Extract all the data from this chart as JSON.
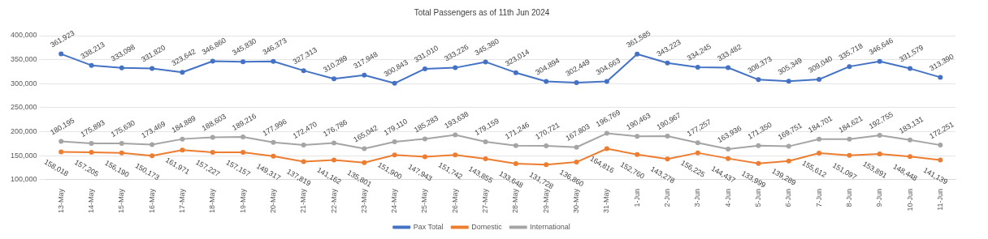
{
  "chart_data": {
    "type": "line",
    "title": "Total Passengers as of 11th Jun 2024",
    "categories": [
      "13-May",
      "14-May",
      "15-May",
      "16-May",
      "17-May",
      "18-May",
      "19-May",
      "20-May",
      "21-May",
      "22-May",
      "23-May",
      "24-May",
      "25-May",
      "26-May",
      "27-May",
      "28-May",
      "29-May",
      "30-May",
      "31-May",
      "1-Jun",
      "2-Jun",
      "3-Jun",
      "4-Jun",
      "5-Jun",
      "6-Jun",
      "7-Jun",
      "8-Jun",
      "9-Jun",
      "10-Jun",
      "11-Jun"
    ],
    "series": [
      {
        "name": "Pax Total",
        "color": "#4472c4",
        "values": [
          361923,
          338213,
          333098,
          331820,
          323642,
          346860,
          345830,
          346373,
          327313,
          310289,
          317948,
          300843,
          331010,
          333226,
          345380,
          323014,
          304894,
          302449,
          304663,
          361585,
          343223,
          334245,
          333482,
          308373,
          305349,
          309040,
          335718,
          346646,
          331579,
          313390
        ],
        "value_labels": [
          "361,923",
          "338,213",
          "333,098",
          "331,820",
          "323,642",
          "346,860",
          "345,830",
          "346,373",
          "327,313",
          "310,289",
          "317,948",
          "300,843",
          "331,010",
          "333,226",
          "345,380",
          "323,014",
          "304,894",
          "302,449",
          "304,663",
          "361,585",
          "343,223",
          "334,245",
          "333,482",
          "308,373",
          "305,349",
          "309,040",
          "335,718",
          "346,646",
          "331,579",
          "313,390"
        ]
      },
      {
        "name": "Domestic",
        "color": "#ed7d31",
        "values": [
          158018,
          157205,
          156190,
          150173,
          161971,
          157227,
          157157,
          149317,
          137819,
          141162,
          135801,
          151900,
          147943,
          151742,
          143855,
          133648,
          131728,
          136860,
          164816,
          152760,
          143278,
          156225,
          144437,
          133999,
          139289,
          155612,
          151097,
          153891,
          148448,
          141139
        ],
        "value_labels": [
          "158,018",
          "157,205",
          "156,190",
          "150,173",
          "161,971",
          "157,227",
          "157,157",
          "149,317",
          "137,819",
          "141,162",
          "135,801",
          "151,900",
          "147,943",
          "151,742",
          "143,855",
          "133,648",
          "131,728",
          "136,860",
          "164,816",
          "152,760",
          "143,278",
          "156,225",
          "144,437",
          "133,999",
          "139,289",
          "155,612",
          "151,097",
          "153,891",
          "148,448",
          "141,139"
        ]
      },
      {
        "name": "International",
        "color": "#a5a5a5",
        "values": [
          180195,
          175893,
          175630,
          173469,
          184889,
          188603,
          189216,
          177996,
          172470,
          176786,
          165042,
          179110,
          185283,
          193638,
          179159,
          171246,
          170721,
          167803,
          196769,
          190463,
          190967,
          177257,
          163936,
          171350,
          169751,
          184701,
          184621,
          192755,
          183131,
          172251
        ],
        "value_labels": [
          "180,195",
          "175,893",
          "175,630",
          "173,469",
          "184,889",
          "188,603",
          "189,216",
          "177,996",
          "172,470",
          "176,786",
          "165,042",
          "179,110",
          "185,283",
          "193,638",
          "179,159",
          "171,246",
          "170,721",
          "167,803",
          "196,769",
          "190,463",
          "190,967",
          "177,257",
          "163,936",
          "171,350",
          "169,751",
          "184,701",
          "184,621",
          "192,755",
          "183,131",
          "172,251"
        ]
      }
    ],
    "ylim": [
      100000,
      400000
    ],
    "yticks": [
      {
        "value": 100000,
        "label": "100,000"
      },
      {
        "value": 150000,
        "label": "150,000"
      },
      {
        "value": 200000,
        "label": "200,000"
      },
      {
        "value": 250000,
        "label": "250,000"
      },
      {
        "value": 300000,
        "label": "300,000"
      },
      {
        "value": 350000,
        "label": "350,000"
      },
      {
        "value": 400000,
        "label": "400,000"
      }
    ],
    "grid": "y",
    "legend": "bottom",
    "marker": "circle",
    "line_style": "solid"
  }
}
